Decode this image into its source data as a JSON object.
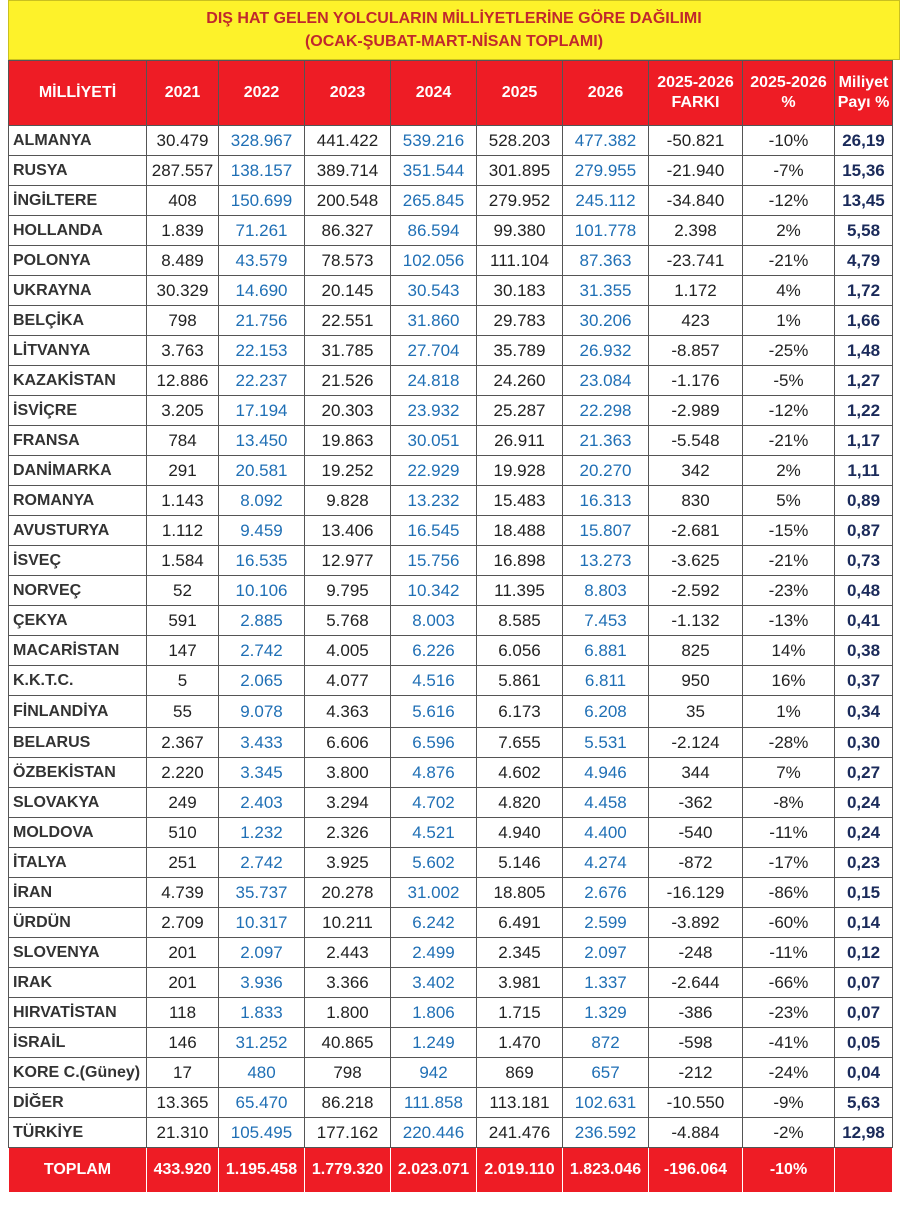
{
  "title": {
    "line1": "DIŞ HAT GELEN YOLCULARIN MİLLİYETLERİNE GÖRE DAĞILIMI",
    "line2": "(OCAK-ŞUBAT-MART-NİSAN TOPLAMI)"
  },
  "colors": {
    "header_bg": "#ee1c25",
    "title_bg": "#fdf22a",
    "title_text": "#c0282d",
    "blue_values": "#1f6fb5"
  },
  "headers": {
    "nationality": "MİLLİYETİ",
    "y2021": "2021",
    "y2022": "2022",
    "y2023": "2023",
    "y2024": "2024",
    "y2025": "2025",
    "y2026": "2026",
    "diff_line1": "2025-2026",
    "diff_line2": "FARKI",
    "pct_line1": "2025-2026",
    "pct_line2": "%",
    "share_line1": "Miliyet",
    "share_line2": "Payı %"
  },
  "rows": [
    [
      "ALMANYA",
      "30.479",
      "328.967",
      "441.422",
      "539.216",
      "528.203",
      "477.382",
      "-50.821",
      "-10%",
      "26,19"
    ],
    [
      "RUSYA",
      "287.557",
      "138.157",
      "389.714",
      "351.544",
      "301.895",
      "279.955",
      "-21.940",
      "-7%",
      "15,36"
    ],
    [
      "İNGİLTERE",
      "408",
      "150.699",
      "200.548",
      "265.845",
      "279.952",
      "245.112",
      "-34.840",
      "-12%",
      "13,45"
    ],
    [
      "HOLLANDA",
      "1.839",
      "71.261",
      "86.327",
      "86.594",
      "99.380",
      "101.778",
      "2.398",
      "2%",
      "5,58"
    ],
    [
      "POLONYA",
      "8.489",
      "43.579",
      "78.573",
      "102.056",
      "111.104",
      "87.363",
      "-23.741",
      "-21%",
      "4,79"
    ],
    [
      "UKRAYNA",
      "30.329",
      "14.690",
      "20.145",
      "30.543",
      "30.183",
      "31.355",
      "1.172",
      "4%",
      "1,72"
    ],
    [
      "BELÇİKA",
      "798",
      "21.756",
      "22.551",
      "31.860",
      "29.783",
      "30.206",
      "423",
      "1%",
      "1,66"
    ],
    [
      "LİTVANYA",
      "3.763",
      "22.153",
      "31.785",
      "27.704",
      "35.789",
      "26.932",
      "-8.857",
      "-25%",
      "1,48"
    ],
    [
      "KAZAKİSTAN",
      "12.886",
      "22.237",
      "21.526",
      "24.818",
      "24.260",
      "23.084",
      "-1.176",
      "-5%",
      "1,27"
    ],
    [
      "İSVİÇRE",
      "3.205",
      "17.194",
      "20.303",
      "23.932",
      "25.287",
      "22.298",
      "-2.989",
      "-12%",
      "1,22"
    ],
    [
      "FRANSA",
      "784",
      "13.450",
      "19.863",
      "30.051",
      "26.911",
      "21.363",
      "-5.548",
      "-21%",
      "1,17"
    ],
    [
      "DANİMARKA",
      "291",
      "20.581",
      "19.252",
      "22.929",
      "19.928",
      "20.270",
      "342",
      "2%",
      "1,11"
    ],
    [
      "ROMANYA",
      "1.143",
      "8.092",
      "9.828",
      "13.232",
      "15.483",
      "16.313",
      "830",
      "5%",
      "0,89"
    ],
    [
      "AVUSTURYA",
      "1.112",
      "9.459",
      "13.406",
      "16.545",
      "18.488",
      "15.807",
      "-2.681",
      "-15%",
      "0,87"
    ],
    [
      "İSVEÇ",
      "1.584",
      "16.535",
      "12.977",
      "15.756",
      "16.898",
      "13.273",
      "-3.625",
      "-21%",
      "0,73"
    ],
    [
      "NORVEÇ",
      "52",
      "10.106",
      "9.795",
      "10.342",
      "11.395",
      "8.803",
      "-2.592",
      "-23%",
      "0,48"
    ],
    [
      "ÇEKYA",
      "591",
      "2.885",
      "5.768",
      "8.003",
      "8.585",
      "7.453",
      "-1.132",
      "-13%",
      "0,41"
    ],
    [
      "MACARİSTAN",
      "147",
      "2.742",
      "4.005",
      "6.226",
      "6.056",
      "6.881",
      "825",
      "14%",
      "0,38"
    ],
    [
      "K.K.T.C.",
      "5",
      "2.065",
      "4.077",
      "4.516",
      "5.861",
      "6.811",
      "950",
      "16%",
      "0,37"
    ],
    [
      "FİNLANDİYA",
      "55",
      "9.078",
      "4.363",
      "5.616",
      "6.173",
      "6.208",
      "35",
      "1%",
      "0,34"
    ],
    [
      "BELARUS",
      "2.367",
      "3.433",
      "6.606",
      "6.596",
      "7.655",
      "5.531",
      "-2.124",
      "-28%",
      "0,30"
    ],
    [
      "ÖZBEKİSTAN",
      "2.220",
      "3.345",
      "3.800",
      "4.876",
      "4.602",
      "4.946",
      "344",
      "7%",
      "0,27"
    ],
    [
      "SLOVAKYA",
      "249",
      "2.403",
      "3.294",
      "4.702",
      "4.820",
      "4.458",
      "-362",
      "-8%",
      "0,24"
    ],
    [
      "MOLDOVA",
      "510",
      "1.232",
      "2.326",
      "4.521",
      "4.940",
      "4.400",
      "-540",
      "-11%",
      "0,24"
    ],
    [
      "İTALYA",
      "251",
      "2.742",
      "3.925",
      "5.602",
      "5.146",
      "4.274",
      "-872",
      "-17%",
      "0,23"
    ],
    [
      "İRAN",
      "4.739",
      "35.737",
      "20.278",
      "31.002",
      "18.805",
      "2.676",
      "-16.129",
      "-86%",
      "0,15"
    ],
    [
      "ÜRDÜN",
      "2.709",
      "10.317",
      "10.211",
      "6.242",
      "6.491",
      "2.599",
      "-3.892",
      "-60%",
      "0,14"
    ],
    [
      "SLOVENYA",
      "201",
      "2.097",
      "2.443",
      "2.499",
      "2.345",
      "2.097",
      "-248",
      "-11%",
      "0,12"
    ],
    [
      "IRAK",
      "201",
      "3.936",
      "3.366",
      "3.402",
      "3.981",
      "1.337",
      "-2.644",
      "-66%",
      "0,07"
    ],
    [
      "HIRVATİSTAN",
      "118",
      "1.833",
      "1.800",
      "1.806",
      "1.715",
      "1.329",
      "-386",
      "-23%",
      "0,07"
    ],
    [
      "İSRAİL",
      "146",
      "31.252",
      "40.865",
      "1.249",
      "1.470",
      "872",
      "-598",
      "-41%",
      "0,05"
    ],
    [
      "KORE C.(Güney)",
      "17",
      "480",
      "798",
      "942",
      "869",
      "657",
      "-212",
      "-24%",
      "0,04"
    ],
    [
      "DİĞER",
      "13.365",
      "65.470",
      "86.218",
      "111.858",
      "113.181",
      "102.631",
      "-10.550",
      "-9%",
      "5,63"
    ],
    [
      "TÜRKİYE",
      "21.310",
      "105.495",
      "177.162",
      "220.446",
      "241.476",
      "236.592",
      "-4.884",
      "-2%",
      "12,98"
    ]
  ],
  "total": {
    "label": "TOPLAM",
    "values": [
      "433.920",
      "1.195.458",
      "1.779.320",
      "2.023.071",
      "2.019.110",
      "1.823.046",
      "-196.064",
      "-10%",
      ""
    ]
  }
}
